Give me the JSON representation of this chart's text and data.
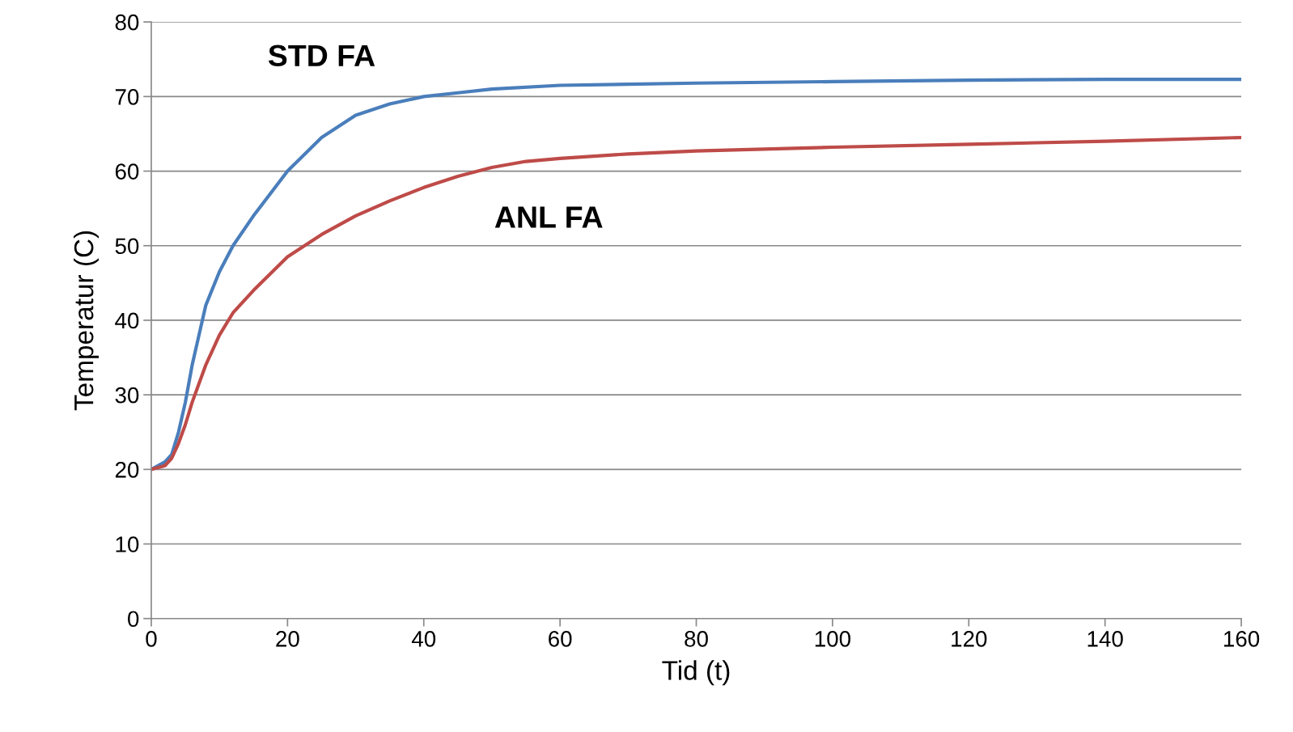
{
  "chart_data": {
    "type": "line",
    "xlabel": "Tid (t)",
    "ylabel": "Temperatur (C)",
    "xlim": [
      0,
      160
    ],
    "xticks": [
      0,
      20,
      40,
      60,
      80,
      100,
      120,
      140,
      160
    ],
    "ylim": [
      0,
      80
    ],
    "yticks": [
      0,
      10,
      20,
      30,
      40,
      50,
      60,
      70,
      80
    ],
    "grid": "y",
    "legend": false,
    "marker": "none",
    "line_style": "solid",
    "series": [
      {
        "name": "STD FA",
        "color": "#4a7ebb",
        "x": [
          0,
          2,
          3,
          4,
          5,
          6,
          7,
          8,
          10,
          12,
          15,
          20,
          25,
          30,
          35,
          40,
          45,
          50,
          60,
          80,
          100,
          120,
          140,
          160
        ],
        "values": [
          20,
          21,
          22,
          25,
          29,
          34,
          38,
          42,
          46.5,
          50,
          54,
          60,
          64.5,
          67.5,
          69,
          70,
          70.5,
          71,
          71.5,
          71.8,
          72,
          72.2,
          72.3,
          72.3
        ]
      },
      {
        "name": "ANL FA",
        "color": "#be4b48",
        "x": [
          0,
          2,
          3,
          4,
          5,
          6,
          8,
          10,
          12,
          15,
          20,
          25,
          30,
          35,
          40,
          45,
          50,
          55,
          60,
          70,
          80,
          100,
          120,
          140,
          160
        ],
        "values": [
          20,
          20.5,
          21.5,
          23.5,
          26,
          29,
          34,
          38,
          41,
          44,
          48.5,
          51.5,
          54,
          56,
          57.8,
          59.3,
          60.5,
          61.3,
          61.7,
          62.3,
          62.7,
          63.2,
          63.6,
          64,
          64.5
        ]
      }
    ]
  }
}
